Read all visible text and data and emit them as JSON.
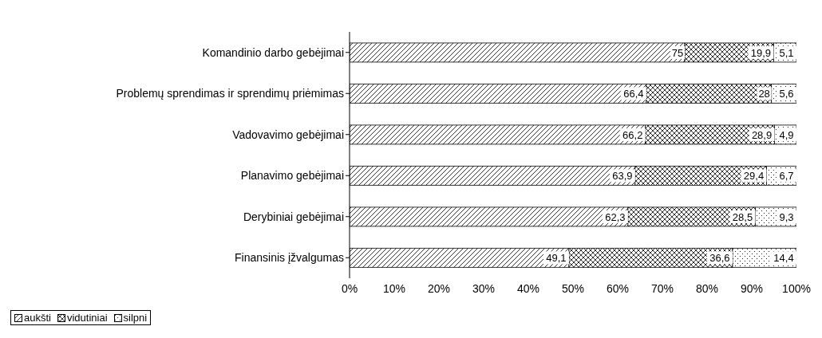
{
  "chart_data": {
    "type": "bar",
    "orientation": "horizontal",
    "stacked": true,
    "categories": [
      "Komandinio darbo gebėjimai",
      "Problemų sprendimas ir sprendimų priėmimas",
      "Vadovavimo gebėjimai",
      "Planavimo gebėjimai",
      "Derybiniai gebėjimai",
      "Finansinis įžvalgumas"
    ],
    "series": [
      {
        "name": "aukšti",
        "color": "#000000",
        "values": [
          75,
          66.4,
          66.2,
          63.9,
          62.3,
          49.1
        ],
        "value_labels": [
          "75",
          "66,4",
          "66,2",
          "63,9",
          "62,3",
          "49,1"
        ]
      },
      {
        "name": "vidutiniai",
        "color": "#000000",
        "values": [
          19.9,
          28,
          28.9,
          29.4,
          28.5,
          36.6
        ],
        "value_labels": [
          "19,9",
          "28",
          "28,9",
          "29,4",
          "28,5",
          "36,6"
        ]
      },
      {
        "name": "silpni",
        "color": "#000000",
        "values": [
          5.1,
          5.6,
          4.9,
          6.7,
          9.3,
          14.4
        ],
        "value_labels": [
          "5,1",
          "5,6",
          "4,9",
          "6,7",
          "9,3",
          "14,4"
        ]
      }
    ],
    "xlim": [
      0,
      100
    ],
    "xticks": [
      {
        "value": 0,
        "label": "0%"
      },
      {
        "value": 10,
        "label": "10%"
      },
      {
        "value": 20,
        "label": "20%"
      },
      {
        "value": 30,
        "label": "30%"
      },
      {
        "value": 40,
        "label": "40%"
      },
      {
        "value": 50,
        "label": "50%"
      },
      {
        "value": 60,
        "label": "60%"
      },
      {
        "value": 70,
        "label": "70%"
      },
      {
        "value": 80,
        "label": "80%"
      },
      {
        "value": 90,
        "label": "90%"
      },
      {
        "value": 100,
        "label": "100%"
      }
    ],
    "legend": "bottom left"
  }
}
